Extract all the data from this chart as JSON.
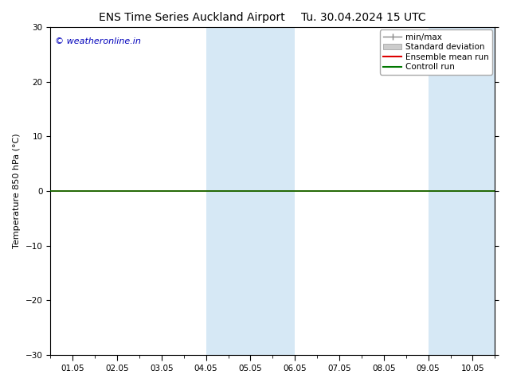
{
  "title_left": "ENS Time Series Auckland Airport",
  "title_right": "Tu. 30.04.2024 15 UTC",
  "ylabel": "Temperature 850 hPa (°C)",
  "watermark": "© weatheronline.in",
  "watermark_color": "#0000bb",
  "ylim": [
    -30,
    30
  ],
  "yticks": [
    -30,
    -20,
    -10,
    0,
    10,
    20,
    30
  ],
  "xtick_labels": [
    "01.05",
    "02.05",
    "03.05",
    "04.05",
    "05.05",
    "06.05",
    "07.05",
    "08.05",
    "09.05",
    "10.05"
  ],
  "num_xticks": 10,
  "xlim_days": 10,
  "shaded_regions": [
    {
      "xmin": 3.0,
      "xmax": 4.0,
      "color": "#d6e8f5",
      "alpha": 1.0
    },
    {
      "xmin": 4.0,
      "xmax": 5.0,
      "color": "#d6e8f5",
      "alpha": 1.0
    },
    {
      "xmin": 8.0,
      "xmax": 9.0,
      "color": "#d6e8f5",
      "alpha": 1.0
    },
    {
      "xmin": 9.0,
      "xmax": 10.0,
      "color": "#d6e8f5",
      "alpha": 1.0
    }
  ],
  "control_run_y": 0.0,
  "control_run_color": "#007700",
  "ensemble_mean_y": 0.0,
  "ensemble_mean_color": "#dd0000",
  "minmax_color": "#888888",
  "std_dev_color": "#cccccc",
  "background_color": "#ffffff",
  "legend_items": [
    {
      "label": "min/max",
      "color": "#888888"
    },
    {
      "label": "Standard deviation",
      "color": "#cccccc"
    },
    {
      "label": "Ensemble mean run",
      "color": "#dd0000"
    },
    {
      "label": "Controll run",
      "color": "#007700"
    }
  ],
  "title_fontsize": 10,
  "label_fontsize": 8,
  "tick_fontsize": 7.5,
  "legend_fontsize": 7.5,
  "watermark_fontsize": 8,
  "fig_width": 6.34,
  "fig_height": 4.9,
  "dpi": 100
}
